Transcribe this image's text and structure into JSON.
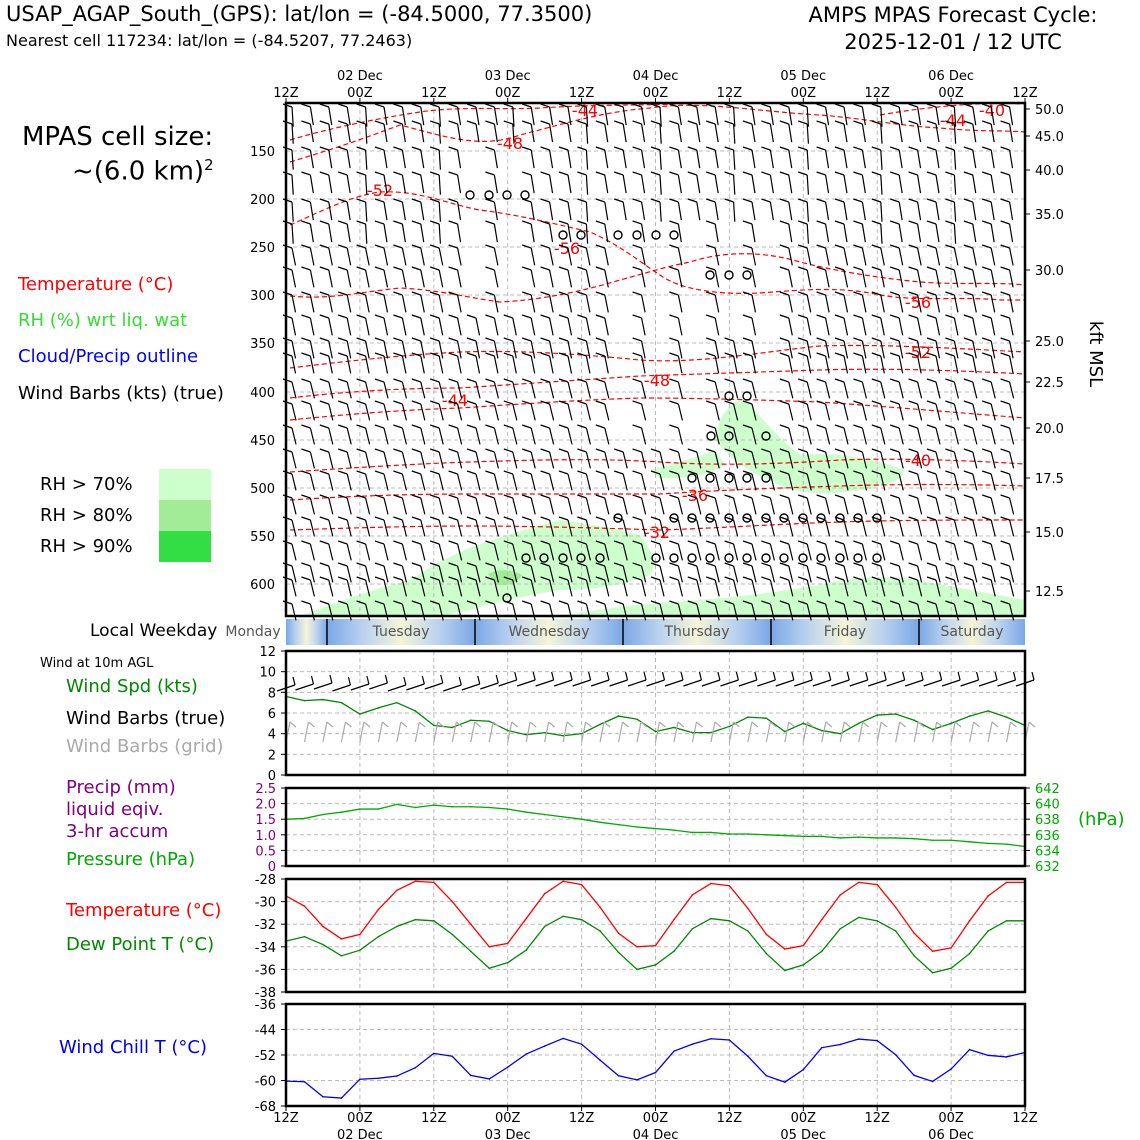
{
  "header": {
    "station_line": "USAP_AGAP_South_(GPS): lat/lon = (-84.5000, 77.3500)",
    "cell_line": "Nearest cell 117234: lat/lon = (-84.5207, 77.2463)",
    "cycle_line1": "AMPS MPAS Forecast Cycle:",
    "cycle_line2": "2025-12-01 / 12 UTC"
  },
  "info": {
    "cell_size_label": "MPAS cell size:",
    "cell_size_value": "~(6.0 km)",
    "cell_size_exp": "2"
  },
  "upper_legend": {
    "temperature": "Temperature (°C)",
    "rh": "RH (%) wrt liq. wat",
    "cloud": "Cloud/Precip outline",
    "wind": "Wind Barbs (kts) (true)",
    "rh70": "RH > 70%",
    "rh80": "RH > 80%",
    "rh90": "RH > 90%"
  },
  "colors": {
    "temperature": "#ff0000",
    "rh": "#33dd33",
    "cloud": "#0000ff",
    "rh70": "#ccffcc",
    "rh80": "#a2ec98",
    "rh90": "#33dd44",
    "dewpoint": "#008800",
    "precip": "#800080",
    "pressure": "#00aa00",
    "windchill": "#0000ee",
    "gridbarb": "#aaaaaa"
  },
  "time_axis": {
    "tick_labels": [
      "12Z",
      "00Z",
      "12Z",
      "00Z",
      "12Z",
      "00Z",
      "12Z",
      "00Z",
      "12Z",
      "00Z",
      "12Z"
    ],
    "date_labels": [
      "02 Dec",
      "03 Dec",
      "04 Dec",
      "05 Dec",
      "06 Dec"
    ]
  },
  "weekday_bar": {
    "label": "Local Weekday",
    "days": [
      "Monday",
      "Tuesday",
      "Wednesday",
      "Thursday",
      "Friday",
      "Saturday"
    ]
  },
  "lower_labels": {
    "wind10m": "Wind at 10m AGL",
    "wind_speed": "Wind Spd (kts)",
    "barbs_true": "Wind Barbs (true)",
    "barbs_grid": "Wind Barbs (grid)",
    "precip1": "Precip (mm)",
    "precip2": "liquid eqiv.",
    "precip3": "3-hr accum",
    "pressure": "Pressure (hPa)",
    "pressure_unit": "(hPa)",
    "temperature": "Temperature (°C)",
    "dewpoint": "Dew Point T (°C)",
    "windchill": "Wind Chill T (°C)"
  },
  "chart_data": [
    {
      "type": "line",
      "name": "upper_air_cross_section",
      "ylabel_right": "kft MSL",
      "pressure_ticks_hPa": [
        150,
        200,
        250,
        300,
        350,
        400,
        450,
        500,
        550,
        600
      ],
      "height_ticks_kft": [
        "50.0",
        "45.0",
        "40.0",
        "35.0",
        "30.0",
        "25.0",
        "22.5",
        "20.0",
        "17.5",
        "15.0",
        "12.5"
      ],
      "isotherm_labels": [
        "-44",
        "-48",
        "-52",
        "-56",
        "-56",
        "-52",
        "-48",
        "-44",
        "-40",
        "-36",
        "-32",
        "-44",
        "-40"
      ]
    },
    {
      "type": "line",
      "name": "wind_speed_10m",
      "ylim": [
        0,
        12
      ],
      "yticks": [
        "12",
        "10",
        "8",
        "6",
        "4",
        "2",
        "0"
      ],
      "x_hours": [
        0,
        3,
        6,
        9,
        12,
        15,
        18,
        21,
        24,
        27,
        30,
        33,
        36,
        39,
        42,
        45,
        48,
        51,
        54,
        57,
        60,
        63,
        66,
        69,
        72,
        75,
        78,
        81,
        84,
        87,
        90,
        93,
        96,
        99,
        102,
        105,
        108,
        111,
        114,
        117,
        120
      ],
      "values": [
        7.6,
        7.2,
        7.3,
        7.0,
        5.9,
        6.5,
        7.0,
        6.2,
        4.8,
        4.6,
        5.3,
        5.2,
        4.3,
        3.9,
        4.1,
        3.8,
        4.0,
        4.9,
        5.7,
        5.4,
        4.2,
        4.6,
        4.1,
        4.1,
        4.7,
        5.6,
        5.5,
        4.2,
        5.0,
        4.3,
        4.0,
        5.0,
        5.8,
        5.9,
        5.3,
        4.4,
        5.0,
        5.7,
        6.2,
        5.6,
        4.8
      ]
    },
    {
      "type": "line",
      "name": "precip_and_pressure",
      "left_ylim": [
        0,
        2.5
      ],
      "left_yticks": [
        "2.5",
        "2.0",
        "1.5",
        "1.0",
        "0.5",
        "0"
      ],
      "right_ylim": [
        632,
        642
      ],
      "right_yticks": [
        "642",
        "640",
        "638",
        "636",
        "634",
        "632"
      ],
      "precip_values_mm": [],
      "x_hours": [
        0,
        3,
        6,
        9,
        12,
        15,
        18,
        21,
        24,
        27,
        30,
        33,
        36,
        39,
        42,
        45,
        48,
        51,
        54,
        57,
        60,
        63,
        66,
        69,
        72,
        75,
        78,
        81,
        84,
        87,
        90,
        93,
        96,
        99,
        102,
        105,
        108,
        111,
        114,
        117,
        120
      ],
      "pressure_values_hPa": [
        638.0,
        638.1,
        638.6,
        638.9,
        639.3,
        639.3,
        639.9,
        639.5,
        639.8,
        639.6,
        639.6,
        639.5,
        639.3,
        638.9,
        638.6,
        638.3,
        638.0,
        637.6,
        637.3,
        637.0,
        636.8,
        636.6,
        636.3,
        636.3,
        636.1,
        636.1,
        636.0,
        635.9,
        635.8,
        635.8,
        635.6,
        635.7,
        635.6,
        635.6,
        635.5,
        635.3,
        635.3,
        635.1,
        634.9,
        634.8,
        634.5
      ]
    },
    {
      "type": "line",
      "name": "temperature_dewpoint",
      "ylim": [
        -38,
        -28
      ],
      "yticks": [
        "-28",
        "-30",
        "-32",
        "-34",
        "-36",
        "-38"
      ],
      "x_hours": [
        0,
        3,
        6,
        9,
        12,
        15,
        18,
        21,
        24,
        27,
        30,
        33,
        36,
        39,
        42,
        45,
        48,
        51,
        54,
        57,
        60,
        63,
        66,
        69,
        72,
        75,
        78,
        81,
        84,
        87,
        90,
        93,
        96,
        99,
        102,
        105,
        108,
        111,
        114,
        117,
        120
      ],
      "series": [
        {
          "name": "Temperature",
          "values": [
            -29.5,
            -30.4,
            -32.2,
            -33.3,
            -32.9,
            -30.7,
            -29.0,
            -28.2,
            -28.3,
            -30.0,
            -32.0,
            -34.0,
            -33.7,
            -31.5,
            -29.3,
            -28.2,
            -28.5,
            -30.5,
            -32.8,
            -34.0,
            -33.9,
            -31.6,
            -29.4,
            -28.4,
            -28.6,
            -30.6,
            -32.9,
            -34.2,
            -33.9,
            -31.6,
            -29.4,
            -28.3,
            -28.5,
            -30.5,
            -32.8,
            -34.4,
            -34.1,
            -31.7,
            -29.5,
            -28.3,
            -28.3
          ]
        },
        {
          "name": "Dew Point",
          "values": [
            -33.5,
            -33.1,
            -33.8,
            -34.8,
            -34.3,
            -33.1,
            -32.2,
            -31.6,
            -31.7,
            -32.9,
            -34.4,
            -35.9,
            -35.4,
            -34.3,
            -32.2,
            -31.3,
            -31.6,
            -32.6,
            -34.5,
            -36.0,
            -35.6,
            -34.4,
            -32.4,
            -31.5,
            -31.7,
            -32.6,
            -34.6,
            -36.1,
            -35.6,
            -34.4,
            -32.4,
            -31.4,
            -31.7,
            -32.6,
            -34.8,
            -36.3,
            -35.9,
            -34.6,
            -32.6,
            -31.7,
            -31.7
          ]
        }
      ]
    },
    {
      "type": "line",
      "name": "wind_chill",
      "ylim": [
        -68,
        -36
      ],
      "yticks": [
        "-36",
        "-44",
        "-52",
        "-60",
        "-68"
      ],
      "x_hours": [
        0,
        3,
        6,
        9,
        12,
        15,
        18,
        21,
        24,
        27,
        30,
        33,
        36,
        39,
        42,
        45,
        48,
        51,
        54,
        57,
        60,
        63,
        66,
        69,
        72,
        75,
        78,
        81,
        84,
        87,
        90,
        93,
        96,
        99,
        102,
        105,
        108,
        111,
        114,
        117,
        120
      ],
      "values": [
        -60.2,
        -60.4,
        -65.1,
        -65.5,
        -59.6,
        -59.3,
        -58.6,
        -56.0,
        -51.5,
        -52.4,
        -58.4,
        -59.5,
        -55.8,
        -51.7,
        -49.2,
        -46.8,
        -48.6,
        -53.6,
        -58.5,
        -59.8,
        -57.5,
        -50.8,
        -48.6,
        -46.9,
        -47.3,
        -52.4,
        -58.5,
        -60.5,
        -56.6,
        -49.7,
        -48.7,
        -47.0,
        -47.5,
        -51.9,
        -58.4,
        -60.3,
        -56.4,
        -50.3,
        -52.1,
        -52.6,
        -51.2
      ]
    }
  ]
}
